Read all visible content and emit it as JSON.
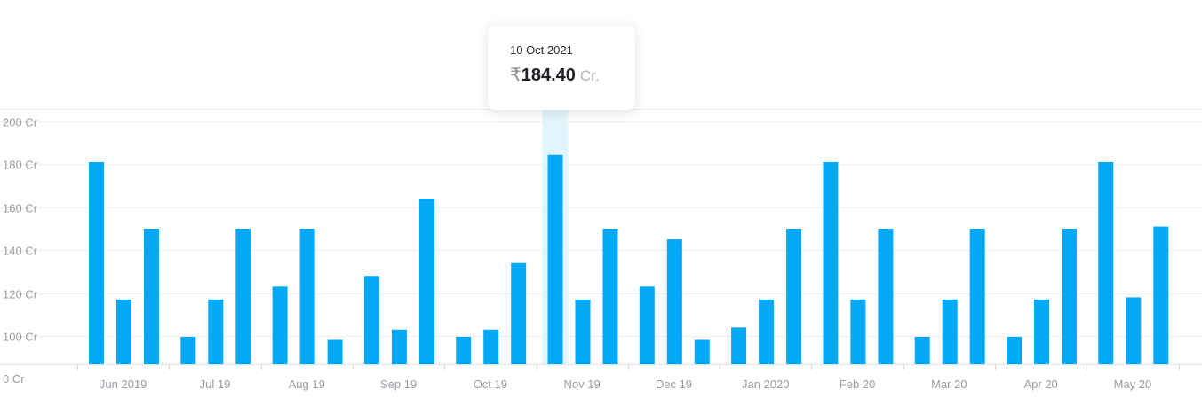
{
  "chart_data": {
    "type": "bar",
    "title": "",
    "xlabel": "",
    "ylabel": "",
    "y_tick_labels": [
      "0 Cr",
      "100 Cr",
      "120 Cr",
      "140 Cr",
      "160 Cr",
      "180 Cr",
      "200 Cr"
    ],
    "y_scale_note": "broken axis: 0 then 100–200",
    "ylim": [
      0,
      200
    ],
    "x_tick_labels": [
      "Jun 2019",
      "Jul 19",
      "Aug 19",
      "Sep 19",
      "Oct 19",
      "Nov 19",
      "Dec 19",
      "Jan 2020",
      "Feb 20",
      "Mar 20",
      "Apr 20",
      "May 20"
    ],
    "series": [
      {
        "color": "#03a9f4",
        "values": [
          181,
          117,
          150,
          97,
          117,
          150,
          123,
          150,
          86,
          128,
          103,
          164,
          97,
          103,
          134,
          184.4,
          117,
          150,
          123,
          145,
          86,
          104,
          117,
          150,
          181,
          117,
          150,
          97,
          117,
          150,
          97,
          117,
          150,
          181,
          118,
          151
        ]
      }
    ],
    "highlight_index": 15,
    "grid": true,
    "legend": "none"
  },
  "tooltip": {
    "date": "10 Oct 2021",
    "currency": "₹",
    "value": "184.40",
    "unit": "Cr."
  }
}
